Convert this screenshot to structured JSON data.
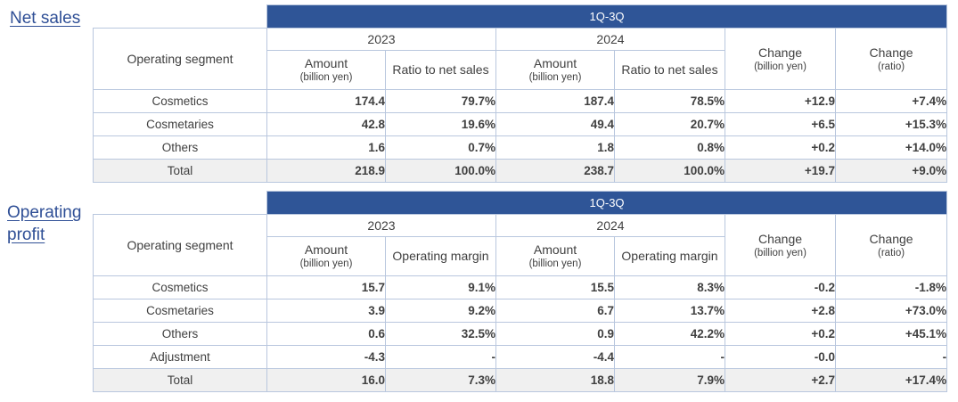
{
  "sections": {
    "net": {
      "label": "Net sales",
      "period": "1Q-3Q",
      "segment_header": "Operating segment",
      "year1": "2023",
      "year2": "2024",
      "amount_label": "Amount",
      "amount_unit": "(billion yen)",
      "ratio_label": "Ratio to net sales",
      "change_label": "Change",
      "change_unit": "(billion yen)",
      "change_ratio_unit": "(ratio)",
      "rows": [
        {
          "segment": "Cosmetics",
          "amt2023": "174.4",
          "r2023": "79.7%",
          "amt2024": "187.4",
          "r2024": "78.5%",
          "chg": "+12.9",
          "chg_ratio": "+7.4%"
        },
        {
          "segment": "Cosmetaries",
          "amt2023": "42.8",
          "r2023": "19.6%",
          "amt2024": "49.4",
          "r2024": "20.7%",
          "chg": "+6.5",
          "chg_ratio": "+15.3%"
        },
        {
          "segment": "Others",
          "amt2023": "1.6",
          "r2023": "0.7%",
          "amt2024": "1.8",
          "r2024": "0.8%",
          "chg": "+0.2",
          "chg_ratio": "+14.0%"
        },
        {
          "segment": "Total",
          "amt2023": "218.9",
          "r2023": "100.0%",
          "amt2024": "238.7",
          "r2024": "100.0%",
          "chg": "+19.7",
          "chg_ratio": "+9.0%"
        }
      ]
    },
    "op": {
      "label": "Operating profit",
      "period": "1Q-3Q",
      "segment_header": "Operating segment",
      "year1": "2023",
      "year2": "2024",
      "amount_label": "Amount",
      "amount_unit": "(billion yen)",
      "ratio_label": "Operating margin",
      "change_label": "Change",
      "change_unit": "(billion yen)",
      "change_ratio_unit": "(ratio)",
      "rows": [
        {
          "segment": "Cosmetics",
          "amt2023": "15.7",
          "r2023": "9.1%",
          "amt2024": "15.5",
          "r2024": "8.3%",
          "chg": "-0.2",
          "chg_ratio": "-1.8%"
        },
        {
          "segment": "Cosmetaries",
          "amt2023": "3.9",
          "r2023": "9.2%",
          "amt2024": "6.7",
          "r2024": "13.7%",
          "chg": "+2.8",
          "chg_ratio": "+73.0%"
        },
        {
          "segment": "Others",
          "amt2023": "0.6",
          "r2023": "32.5%",
          "amt2024": "0.9",
          "r2024": "42.2%",
          "chg": "+0.2",
          "chg_ratio": "+45.1%"
        },
        {
          "segment": "Adjustment",
          "amt2023": "-4.3",
          "r2023": "-",
          "amt2024": "-4.4",
          "r2024": "-",
          "chg": "-0.0",
          "chg_ratio": "-"
        },
        {
          "segment": "Total",
          "amt2023": "16.0",
          "r2023": "7.3%",
          "amt2024": "18.8",
          "r2024": "7.9%",
          "chg": "+2.7",
          "chg_ratio": "+17.4%"
        }
      ]
    }
  }
}
